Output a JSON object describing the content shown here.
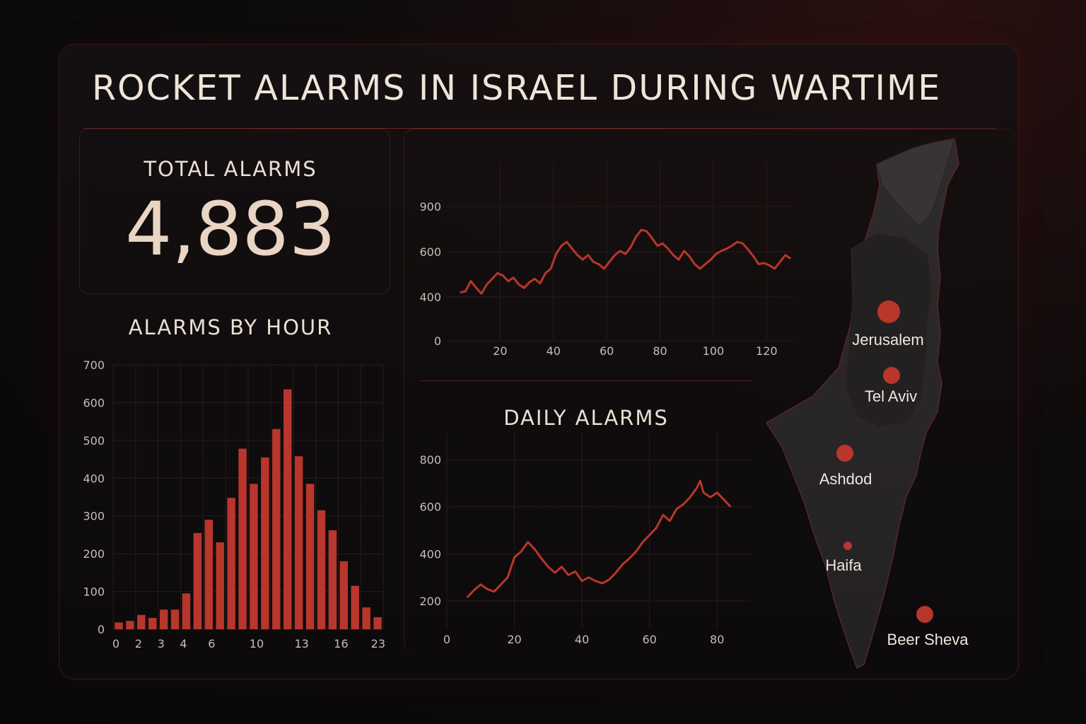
{
  "header": {
    "title": "ROCKET ALARMS IN ISRAEL DURING WARTIME"
  },
  "total": {
    "label": "TOTAL ALARMS",
    "value": "4,883"
  },
  "colors": {
    "accent": "#b8362c",
    "background": "#0d0b0c",
    "map_fill": "#2a2728"
  },
  "chart_data": [
    {
      "type": "bar",
      "title": "ALARMS BY HOUR",
      "xlabel": "",
      "ylabel": "",
      "x_tick_labels": [
        "0",
        "2",
        "3",
        "4",
        "6",
        "10",
        "13",
        "16",
        "23"
      ],
      "y_ticks": [
        0,
        100,
        200,
        300,
        400,
        500,
        600,
        700
      ],
      "ylim": [
        0,
        700
      ],
      "values": [
        18,
        22,
        38,
        30,
        52,
        52,
        95,
        255,
        290,
        230,
        348,
        478,
        385,
        455,
        530,
        635,
        458,
        385,
        315,
        262,
        180,
        115,
        58,
        32
      ],
      "grid": true
    },
    {
      "type": "line",
      "title": "",
      "xlabel": "",
      "ylabel": "",
      "x_ticks": [
        20,
        40,
        60,
        80,
        100,
        120
      ],
      "y_ticks": [
        0,
        400,
        600,
        900
      ],
      "xlim": [
        0,
        130
      ],
      "grid": true,
      "x": [
        5,
        7,
        9,
        11,
        13,
        15,
        17,
        19,
        21,
        23,
        25,
        27,
        29,
        31,
        33,
        35,
        37,
        39,
        41,
        43,
        45,
        47,
        49,
        51,
        53,
        55,
        57,
        59,
        61,
        63,
        65,
        67,
        69,
        71,
        73,
        75,
        77,
        79,
        81,
        83,
        85,
        87,
        89,
        91,
        93,
        95,
        97,
        99,
        101,
        103,
        105,
        107,
        109,
        111,
        113,
        115,
        117,
        119,
        121,
        123,
        125,
        127,
        129
      ],
      "values": [
        420,
        425,
        470,
        440,
        415,
        455,
        480,
        505,
        495,
        470,
        485,
        455,
        440,
        465,
        480,
        460,
        505,
        525,
        590,
        640,
        665,
        620,
        585,
        565,
        585,
        555,
        545,
        525,
        555,
        585,
        605,
        590,
        630,
        700,
        745,
        735,
        690,
        640,
        655,
        620,
        585,
        565,
        605,
        580,
        545,
        525,
        545,
        565,
        590,
        605,
        620,
        640,
        665,
        655,
        615,
        580,
        545,
        550,
        540,
        525,
        555,
        585,
        570
      ]
    },
    {
      "type": "line",
      "title": "DAILY ALARMS",
      "xlabel": "",
      "ylabel": "",
      "x_ticks": [
        0,
        20,
        40,
        60,
        80
      ],
      "y_ticks": [
        200,
        400,
        600,
        800
      ],
      "xlim": [
        0,
        90
      ],
      "grid": true,
      "x": [
        6,
        8,
        10,
        12,
        14,
        16,
        18,
        20,
        22,
        24,
        26,
        28,
        30,
        32,
        34,
        36,
        38,
        40,
        42,
        44,
        46,
        48,
        50,
        52,
        54,
        56,
        58,
        60,
        62,
        64,
        66,
        68,
        70,
        72,
        74,
        75,
        76,
        78,
        80,
        82,
        84
      ],
      "values": [
        215,
        245,
        270,
        250,
        240,
        270,
        300,
        385,
        410,
        450,
        420,
        380,
        345,
        320,
        345,
        310,
        325,
        285,
        300,
        285,
        275,
        290,
        320,
        355,
        380,
        410,
        450,
        480,
        510,
        565,
        540,
        590,
        610,
        640,
        680,
        710,
        660,
        640,
        660,
        630,
        600
      ]
    }
  ],
  "map": {
    "cities": [
      {
        "name": "Jerusalem",
        "size": "large"
      },
      {
        "name": "Tel Aviv",
        "size": "medium"
      },
      {
        "name": "Ashdod",
        "size": "medium"
      },
      {
        "name": "Haifa",
        "size": "small"
      },
      {
        "name": "Beer Sheva",
        "size": "medium"
      }
    ]
  }
}
